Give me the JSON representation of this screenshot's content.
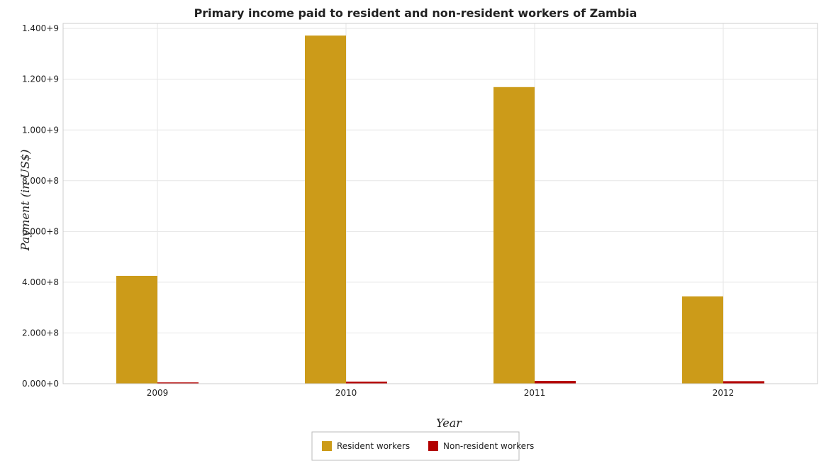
{
  "chart_data": {
    "type": "bar",
    "title": "Primary income paid to resident and non-resident workers of Zambia",
    "xlabel": "Year",
    "ylabel": "Payment (in US$)",
    "categories": [
      "2009",
      "2010",
      "2011",
      "2012"
    ],
    "series": [
      {
        "name": "Resident workers",
        "color": "#cc9b19",
        "values": [
          425000000,
          1372000000,
          1169000000,
          344000000
        ]
      },
      {
        "name": "Non-resident workers",
        "color": "#b30000",
        "values": [
          5000000,
          8000000,
          11000000,
          10000000
        ]
      }
    ],
    "ylim": [
      0,
      1400000000
    ],
    "yticks": [
      {
        "value": 0,
        "label": "0.000+0"
      },
      {
        "value": 200000000,
        "label": "2.000+8"
      },
      {
        "value": 400000000,
        "label": "4.000+8"
      },
      {
        "value": 600000000,
        "label": "6.000+8"
      },
      {
        "value": 800000000,
        "label": "8.000+8"
      },
      {
        "value": 1000000000,
        "label": "1.000+9"
      },
      {
        "value": 1200000000,
        "label": "1.200+9"
      },
      {
        "value": 1400000000,
        "label": "1.400+9"
      }
    ],
    "grid": true,
    "legend_position": "bottom-center"
  }
}
